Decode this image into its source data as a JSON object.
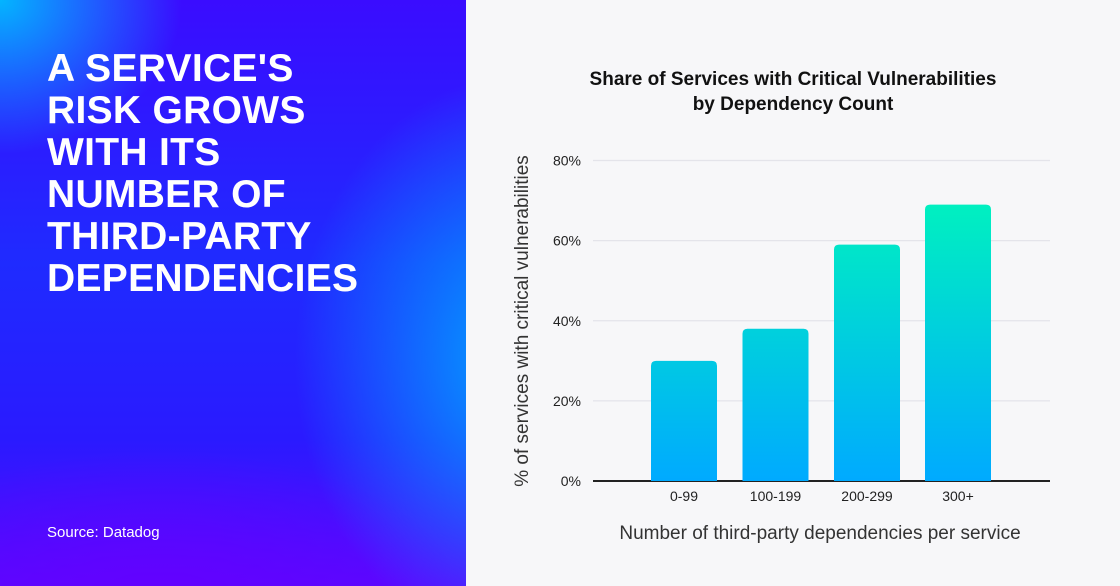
{
  "headline": {
    "lines": [
      "A SERVICE'S",
      "RISK GROWS",
      "WITH ITS",
      "NUMBER OF",
      "THIRD-PARTY",
      "DEPENDENCIES"
    ]
  },
  "source": "Source: Datadog",
  "colors": {
    "panel": "#2a1aff",
    "bar_bottom": "#00aaff",
    "bar_top": "#00f0c0",
    "background": "#f7f7f9"
  },
  "chart_data": {
    "type": "bar",
    "title_lines": [
      "Share of Services with Critical Vulnerabilities",
      "by Dependency Count"
    ],
    "categories": [
      "0-99",
      "100-199",
      "200-299",
      "300+"
    ],
    "values": [
      30,
      38,
      59,
      69
    ],
    "xlabel": "Number of third-party dependencies per service",
    "ylabel": "% of services with critical vulnerabilities",
    "ylim": [
      0,
      80
    ],
    "yticks": [
      0,
      20,
      40,
      60,
      80
    ],
    "ytick_labels": [
      "0%",
      "20%",
      "40%",
      "60%",
      "80%"
    ],
    "grid": true,
    "legend": "none"
  }
}
